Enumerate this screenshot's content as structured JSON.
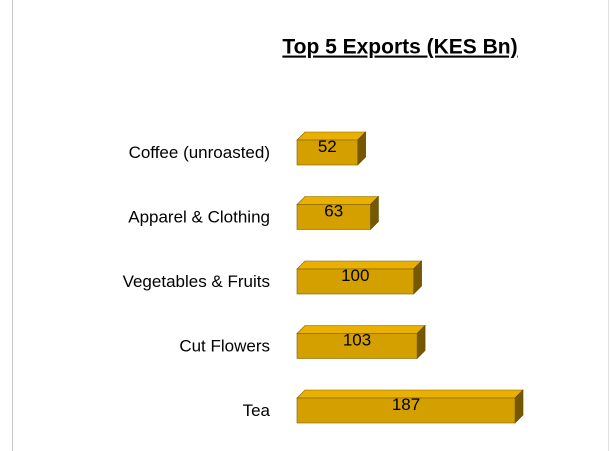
{
  "chart_data": {
    "type": "bar3d",
    "orientation": "horizontal",
    "title": "Top 5 Exports (KES Bn)",
    "categories": [
      "Coffee (unroasted)",
      "Apparel & Clothing",
      "Vegetables & Fruits",
      "Cut Flowers",
      "Tea"
    ],
    "values": [
      52,
      63,
      100,
      103,
      187
    ],
    "color": "#d4a000"
  }
}
